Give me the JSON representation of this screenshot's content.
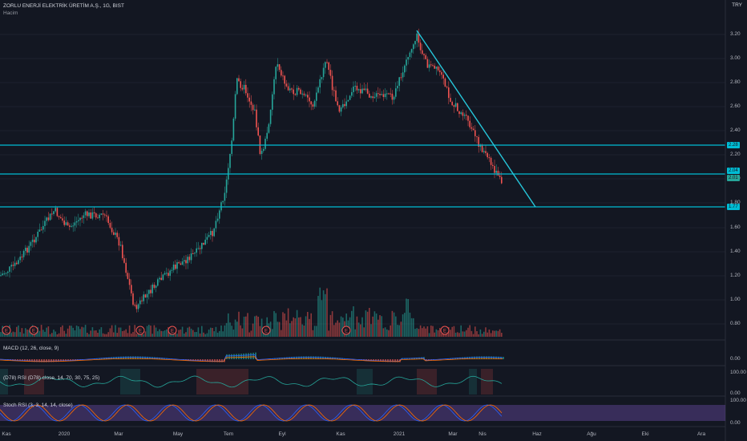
{
  "header": {
    "title": "ZORLU ENERJİ ELEKTRİK ÜRETİM A.Ş., 1G, BIST",
    "volume_label": "Hacim"
  },
  "currency": "TRY",
  "price_axis": [
    "3.20",
    "3.00",
    "2.80",
    "2.60",
    "2.40",
    "2.20",
    "2.00",
    "1.80",
    "1.60",
    "1.40",
    "1.20",
    "1.00",
    "0.80"
  ],
  "levels": [
    {
      "value": "2.28",
      "color": "#00bcd4"
    },
    {
      "value": "2.04",
      "color": "#00bcd4"
    },
    {
      "value": "2.01",
      "color": "#26a69a"
    },
    {
      "value": "1.77",
      "color": "#00bcd4"
    }
  ],
  "panels": {
    "macd": {
      "title": "MACD (12, 26, close, 9)",
      "axis": "0.00"
    },
    "rsi": {
      "title": "(D78) RSI (D78) close, 14, 70, 30, 75, 25)",
      "axis_top": "100.00",
      "axis_bottom": "0.00"
    },
    "stoch": {
      "title": "Stoch RSI (3, 3, 14, 14, close)",
      "axis_top": "100.00",
      "axis_bottom": "0.00"
    }
  },
  "x_axis": [
    "Kas",
    "2020",
    "Mar",
    "May",
    "Tem",
    "Eyl",
    "Kas",
    "2021",
    "Mar",
    "Nis",
    "Haz",
    "Ağu",
    "Eki",
    "Ara"
  ],
  "earnings_marker": "E",
  "colors": {
    "up": "#26a69a",
    "down": "#ef5350",
    "line": "#00bcd4",
    "trend": "#26c6da",
    "stoch": "#7e57c2",
    "bg": "#131722"
  }
}
